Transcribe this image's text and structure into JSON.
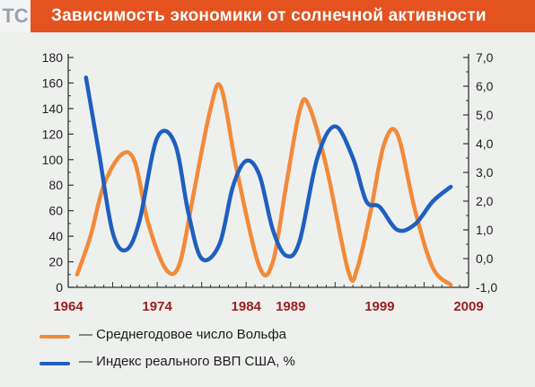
{
  "header": {
    "channel_mark": "ТС",
    "title": "Зависимость экономики от солнечной активности"
  },
  "colors": {
    "header_bg": "#e3521f",
    "wolf_series": "#f28a3a",
    "gdp_series": "#1f5fbf",
    "year_tick": "#9a1f1f",
    "axis_text": "#222222"
  },
  "legend": {
    "items": [
      {
        "label": "— Среднегодовое число Вольфа",
        "color": "#f28a3a"
      },
      {
        "label": "— Индекс реального ВВП США, %",
        "color": "#1f5fbf"
      }
    ]
  },
  "chart_data": {
    "type": "line",
    "title": "Зависимость экономики от солнечной активности",
    "xlim": [
      1964,
      2009
    ],
    "x_ticks": [
      "1964",
      "1974",
      "1984",
      "1989",
      "1999",
      "2009"
    ],
    "grid": false,
    "y_left": {
      "lim": [
        0,
        180
      ],
      "ticks": [
        "0",
        "20",
        "40",
        "60",
        "80",
        "100",
        "120",
        "140",
        "160",
        "180"
      ]
    },
    "y_right": {
      "lim": [
        -1.0,
        7.0
      ],
      "ticks": [
        "-1,0",
        "0,0",
        "1,0",
        "2,0",
        "3,0",
        "4,0",
        "5,0",
        "6,0",
        "7,0"
      ]
    },
    "series": [
      {
        "name": "Среднегодовое число Вольфа",
        "axis": "left",
        "color": "#f28a3a",
        "x": [
          1965,
          1966.5,
          1968,
          1970,
          1971.5,
          1973,
          1975,
          1976.5,
          1978,
          1980,
          1981.2,
          1983,
          1985.5,
          1987,
          1988.5,
          1990,
          1991,
          1993,
          1995.5,
          1996.5,
          1998,
          1999.5,
          2001,
          2003,
          2005,
          2007
        ],
        "y": [
          10,
          40,
          80,
          104,
          98,
          50,
          14,
          18,
          70,
          140,
          156,
          90,
          16,
          20,
          80,
          138,
          143,
          95,
          12,
          15,
          60,
          112,
          120,
          60,
          15,
          2
        ]
      },
      {
        "name": "Индекс реального ВВП США, %",
        "axis": "right",
        "color": "#1f5fbf",
        "x": [
          1966,
          1967.5,
          1969,
          1970.5,
          1972,
          1974,
          1976,
          1977.5,
          1979,
          1981,
          1982.5,
          1984,
          1985.5,
          1987,
          1988.5,
          1990,
          1992,
          1994,
          1996,
          1997.5,
          1999,
          2001,
          2003,
          2005,
          2007
        ],
        "y": [
          6.3,
          3.6,
          0.9,
          0.3,
          1.3,
          4.2,
          4.0,
          1.6,
          0.0,
          0.5,
          2.5,
          3.4,
          2.9,
          1.0,
          0.1,
          0.6,
          3.5,
          4.6,
          3.5,
          2.0,
          1.8,
          1.0,
          1.2,
          2.0,
          2.5
        ]
      }
    ]
  }
}
